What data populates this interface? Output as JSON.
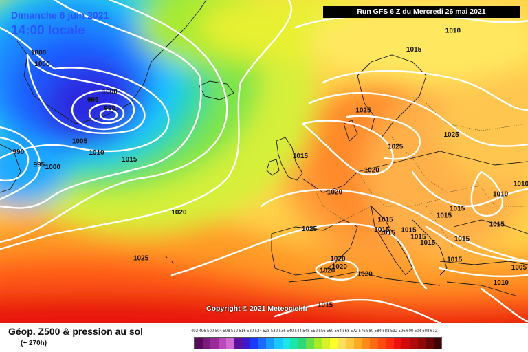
{
  "header": {
    "date_label": "Dimanche 6 juin 2021",
    "time_label": "14:00 locale",
    "run_label": "Run GFS 6 Z du Mercredi 26 mai 2021"
  },
  "copyright": "Copyright © 2021 Meteociel.fr",
  "footer": {
    "product_label": "Géop. Z500 & pression au sol",
    "forecast_hour": "(+ 270h)"
  },
  "legend": {
    "values": [
      "492",
      "496",
      "500",
      "504",
      "508",
      "512",
      "516",
      "520",
      "524",
      "528",
      "532",
      "536",
      "540",
      "544",
      "548",
      "552",
      "556",
      "560",
      "564",
      "568",
      "572",
      "576",
      "580",
      "584",
      "588",
      "592",
      "596",
      "600",
      "604",
      "608",
      "612"
    ],
    "colors": [
      "#5a0a5a",
      "#7a1a7a",
      "#9a2a9a",
      "#b94ab9",
      "#d06ad0",
      "#5a10a0",
      "#3a1ad0",
      "#1a3aff",
      "#1a6aff",
      "#1a9aff",
      "#1ac8ff",
      "#1ae6e6",
      "#1ae6a8",
      "#2ed878",
      "#6ae048",
      "#a6ea2a",
      "#d8f22a",
      "#ffff2a",
      "#ffe05a",
      "#ffc840",
      "#ffaa20",
      "#ff8a1a",
      "#ff6a10",
      "#ff4a10",
      "#ff2a10",
      "#f01010",
      "#d00a0a",
      "#b00a0a",
      "#900808",
      "#6a0606",
      "#400404"
    ]
  },
  "isobars": [
    {
      "value": "1000",
      "x_pct": 7.3,
      "y_pct": 16.4
    },
    {
      "value": "1000",
      "x_pct": 8.0,
      "y_pct": 19.9
    },
    {
      "value": "1000",
      "x_pct": 20.8,
      "y_pct": 28.5
    },
    {
      "value": "995",
      "x_pct": 17.6,
      "y_pct": 30.9
    },
    {
      "value": "990",
      "x_pct": 20.8,
      "y_pct": 33.6
    },
    {
      "value": "990",
      "x_pct": 3.5,
      "y_pct": 47.1
    },
    {
      "value": "995",
      "x_pct": 7.4,
      "y_pct": 51.0
    },
    {
      "value": "1000",
      "x_pct": 10.0,
      "y_pct": 51.8
    },
    {
      "value": "1005",
      "x_pct": 15.1,
      "y_pct": 43.8
    },
    {
      "value": "1010",
      "x_pct": 18.3,
      "y_pct": 47.3
    },
    {
      "value": "1015",
      "x_pct": 24.5,
      "y_pct": 49.4
    },
    {
      "value": "1010",
      "x_pct": 85.8,
      "y_pct": 9.6
    },
    {
      "value": "1015",
      "x_pct": 78.4,
      "y_pct": 15.4
    },
    {
      "value": "1025",
      "x_pct": 68.8,
      "y_pct": 34.2
    },
    {
      "value": "1025",
      "x_pct": 74.9,
      "y_pct": 45.5
    },
    {
      "value": "1025",
      "x_pct": 85.5,
      "y_pct": 41.8
    },
    {
      "value": "1015",
      "x_pct": 56.9,
      "y_pct": 48.4
    },
    {
      "value": "1020",
      "x_pct": 70.4,
      "y_pct": 52.7
    },
    {
      "value": "1020",
      "x_pct": 63.4,
      "y_pct": 59.6
    },
    {
      "value": "1010",
      "x_pct": 98.7,
      "y_pct": 57.0
    },
    {
      "value": "1010",
      "x_pct": 94.8,
      "y_pct": 60.2
    },
    {
      "value": "1015",
      "x_pct": 86.6,
      "y_pct": 64.7
    },
    {
      "value": "1015",
      "x_pct": 84.1,
      "y_pct": 66.8
    },
    {
      "value": "1015",
      "x_pct": 94.1,
      "y_pct": 69.6
    },
    {
      "value": "1015",
      "x_pct": 73.0,
      "y_pct": 68.1
    },
    {
      "value": "1015",
      "x_pct": 72.3,
      "y_pct": 71.1
    },
    {
      "value": "1015",
      "x_pct": 77.4,
      "y_pct": 71.3
    },
    {
      "value": "1015",
      "x_pct": 79.2,
      "y_pct": 73.4
    },
    {
      "value": "1015",
      "x_pct": 81.0,
      "y_pct": 75.2
    },
    {
      "value": "1015",
      "x_pct": 73.4,
      "y_pct": 72.1
    },
    {
      "value": "1015",
      "x_pct": 87.5,
      "y_pct": 74.0
    },
    {
      "value": "1015",
      "x_pct": 86.1,
      "y_pct": 80.4
    },
    {
      "value": "1005",
      "x_pct": 98.3,
      "y_pct": 82.8
    },
    {
      "value": "1010",
      "x_pct": 94.9,
      "y_pct": 87.5
    },
    {
      "value": "1020",
      "x_pct": 33.9,
      "y_pct": 65.8
    },
    {
      "value": "1025",
      "x_pct": 58.6,
      "y_pct": 70.9
    },
    {
      "value": "1025",
      "x_pct": 26.7,
      "y_pct": 80.0
    },
    {
      "value": "1020",
      "x_pct": 64.0,
      "y_pct": 80.2
    },
    {
      "value": "1020",
      "x_pct": 64.3,
      "y_pct": 82.6
    },
    {
      "value": "1020",
      "x_pct": 62.0,
      "y_pct": 83.8
    },
    {
      "value": "1020",
      "x_pct": 69.1,
      "y_pct": 84.9
    },
    {
      "value": "1015",
      "x_pct": 61.6,
      "y_pct": 94.4
    }
  ]
}
